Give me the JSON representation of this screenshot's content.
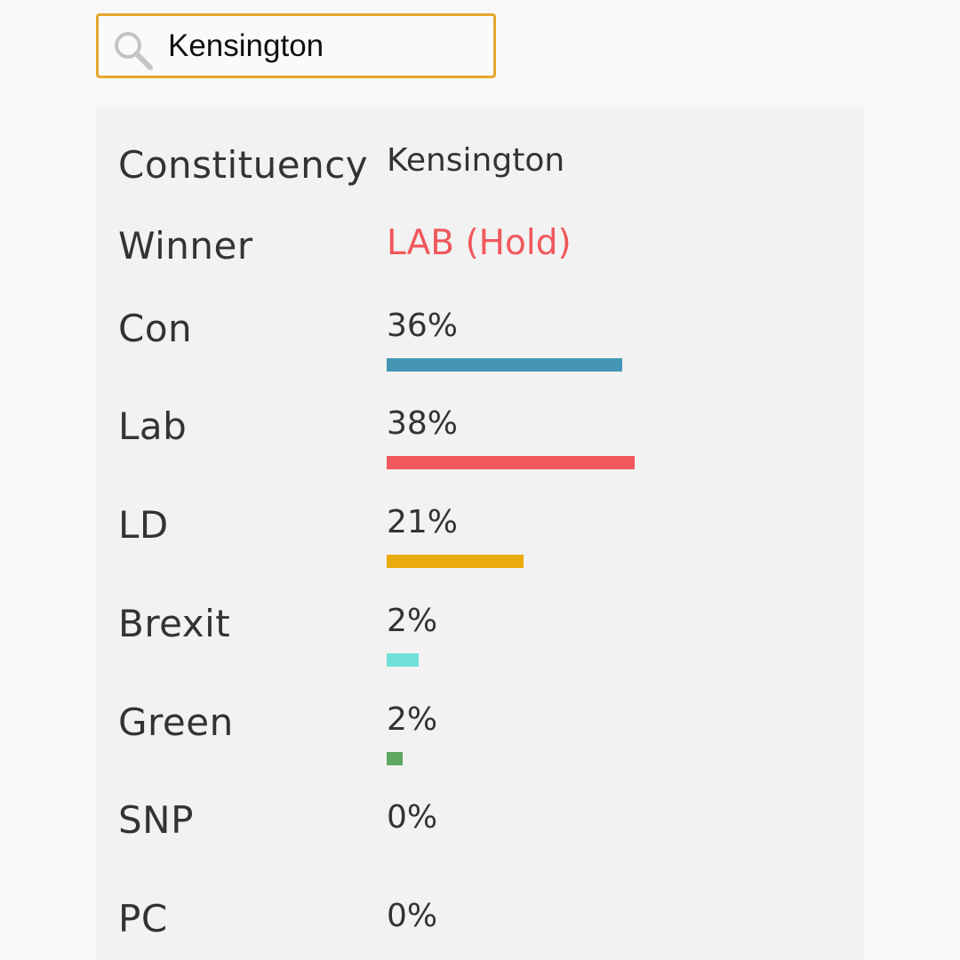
{
  "search": {
    "value": "Kensington",
    "placeholder": ""
  },
  "result": {
    "constituency_label": "Constituency",
    "constituency_value": "Kensington",
    "winner_label": "Winner",
    "winner_value": "LAB (Hold)",
    "winner_color": "#f0585c"
  },
  "parties": [
    {
      "label": "Con",
      "share": "36%",
      "fraction": 0.36,
      "color": "#4596b4"
    },
    {
      "label": "Lab",
      "share": "38%",
      "fraction": 0.38,
      "color": "#f0585c"
    },
    {
      "label": "LD",
      "share": "21%",
      "fraction": 0.21,
      "color": "#ecab0c"
    },
    {
      "label": "Brexit",
      "share": "2%",
      "fraction": 0.02,
      "color": "#72e0d8"
    },
    {
      "label": "Green",
      "share": "2%",
      "fraction": 0.02,
      "color": "#5ea85f"
    },
    {
      "label": "SNP",
      "share": "0%",
      "fraction": 0.0,
      "color": "#ffe34d"
    },
    {
      "label": "PC",
      "share": "0%",
      "fraction": 0.0,
      "color": "#3f8428"
    }
  ],
  "colors": {
    "search_border": "#e8a630",
    "panel_background": "#f2f2f2",
    "text": "#333333"
  },
  "icons": {
    "search": "search-icon"
  }
}
